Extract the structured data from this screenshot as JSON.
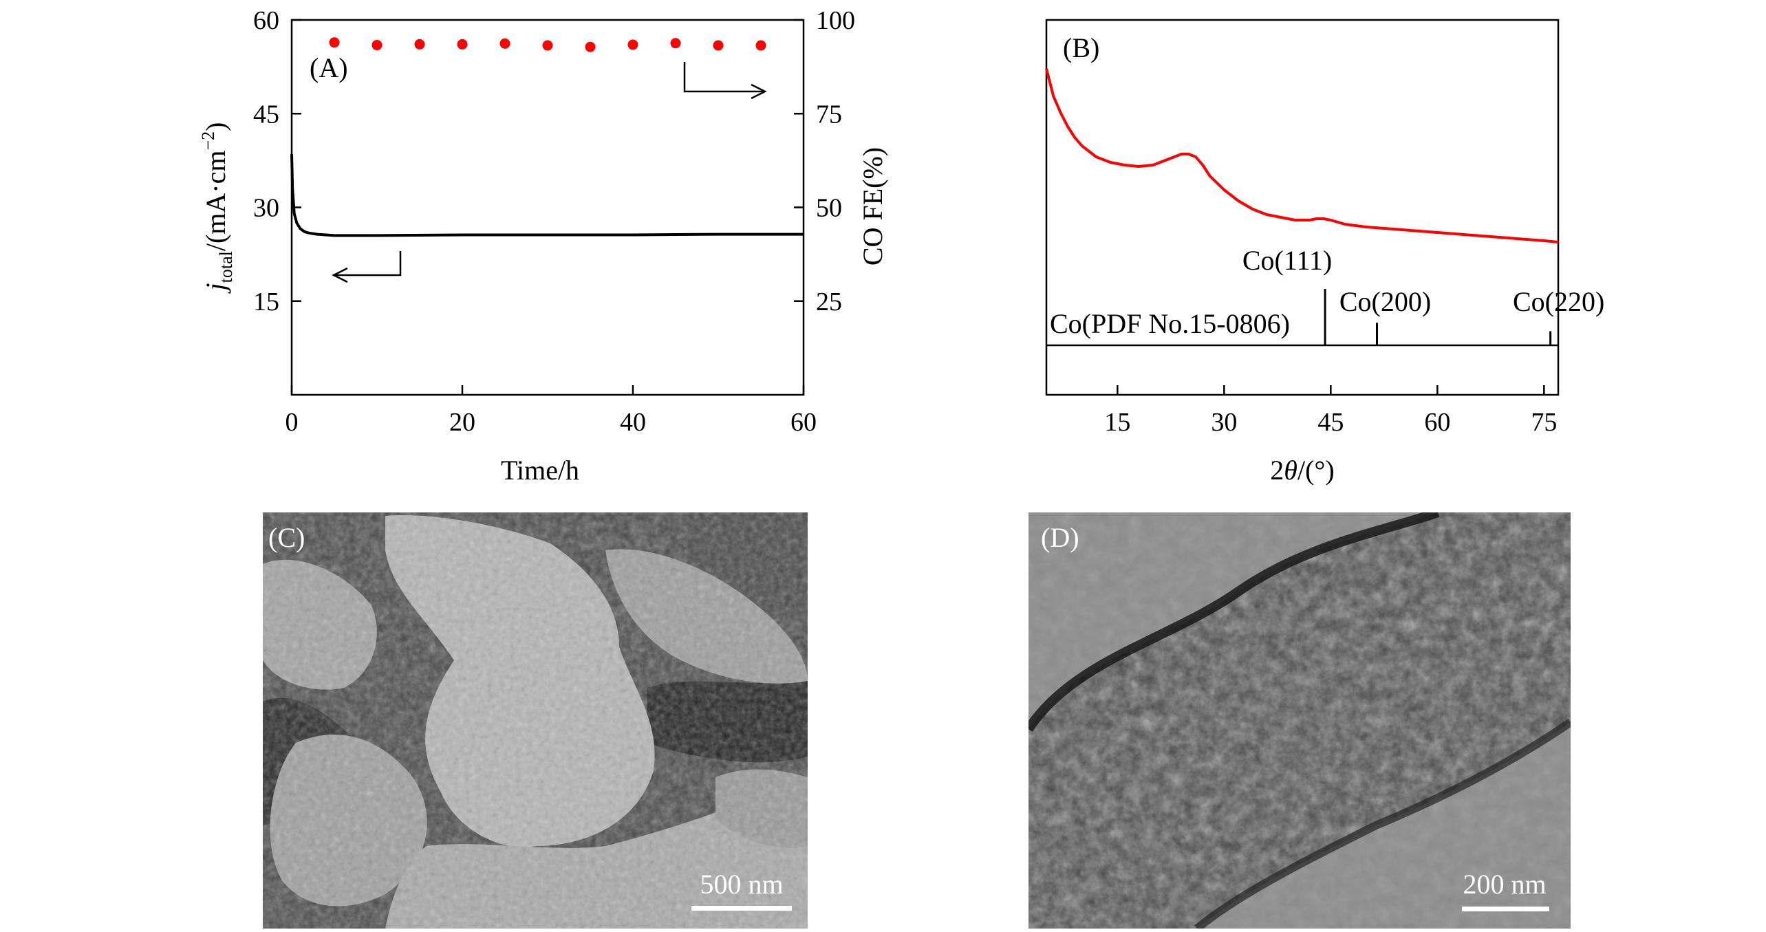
{
  "chart_data": [
    {
      "panel": "(A)",
      "type": "line",
      "xlabel": "Time/h",
      "ylabel_left": "j_total/(mA·cm⁻²)",
      "ylabel_left_main": "j",
      "ylabel_left_sub": "total",
      "ylabel_left_rest": "/(mA·cm",
      "ylabel_left_sup": "−2",
      "ylabel_left_end": ")",
      "ylabel_right": "CO FE(%)",
      "xlim": [
        0,
        60
      ],
      "ylim_left": [
        0,
        60
      ],
      "ylim_right": [
        0,
        100
      ],
      "x_ticks": [
        0,
        20,
        40,
        60
      ],
      "y_left_ticks": [
        15,
        30,
        45,
        60
      ],
      "y_right_ticks": [
        25,
        50,
        75,
        100
      ],
      "series": [
        {
          "axis": "left",
          "style": "line",
          "color": "#000000",
          "x": [
            0,
            0.1,
            0.3,
            0.6,
            1,
            1.5,
            2,
            3,
            5,
            10,
            20,
            30,
            40,
            50,
            60
          ],
          "y": [
            38.5,
            33,
            29,
            27.5,
            26.6,
            26.1,
            25.9,
            25.7,
            25.5,
            25.5,
            25.6,
            25.6,
            25.6,
            25.7,
            25.7
          ]
        },
        {
          "axis": "right",
          "style": "scatter",
          "color": "#ff0000",
          "x": [
            5,
            10,
            15,
            20,
            25,
            30,
            35,
            40,
            45,
            50,
            55
          ],
          "y": [
            94,
            93.3,
            93.5,
            93.5,
            93.7,
            93.2,
            92.8,
            93.4,
            93.8,
            93.2,
            93.2
          ]
        }
      ]
    },
    {
      "panel": "(B)",
      "type": "line",
      "xlabel": "2θ/(°)",
      "xlabel_num": "2",
      "xlabel_theta": "θ",
      "xlabel_unit": "/(°)",
      "xlim": [
        5,
        77
      ],
      "x_ticks": [
        15,
        30,
        45,
        60,
        75
      ],
      "series": [
        {
          "color": "#ff0000",
          "x": [
            5,
            6,
            7,
            8,
            9,
            10,
            12,
            14,
            16,
            18,
            20,
            22,
            24,
            25,
            26,
            27,
            28,
            30,
            32,
            34,
            36,
            38,
            40,
            42,
            43,
            44,
            45,
            47,
            50,
            55,
            60,
            65,
            70,
            75,
            77
          ],
          "y": [
            100,
            90,
            84,
            79,
            75,
            72,
            68,
            66,
            65,
            64.5,
            65,
            67,
            69,
            69,
            68,
            65,
            61,
            56,
            52,
            49,
            47,
            46,
            45,
            45,
            45.5,
            45.5,
            45,
            43.5,
            42.5,
            41.5,
            40.5,
            39.5,
            38.5,
            37.5,
            37
          ]
        }
      ],
      "reference_label": "Co(PDF No.15-0806)",
      "reference_peaks": [
        {
          "x": 44.2,
          "label": "Co(111)",
          "intensity": 100
        },
        {
          "x": 51.5,
          "label": "Co(200)",
          "intensity": 40
        },
        {
          "x": 75.9,
          "label": "Co(220)",
          "intensity": 25
        }
      ]
    }
  ],
  "images": [
    {
      "panel": "(C)",
      "type": "SEM micrograph",
      "scale_bar": "500 nm"
    },
    {
      "panel": "(D)",
      "type": "TEM micrograph",
      "scale_bar": "200 nm"
    }
  ]
}
